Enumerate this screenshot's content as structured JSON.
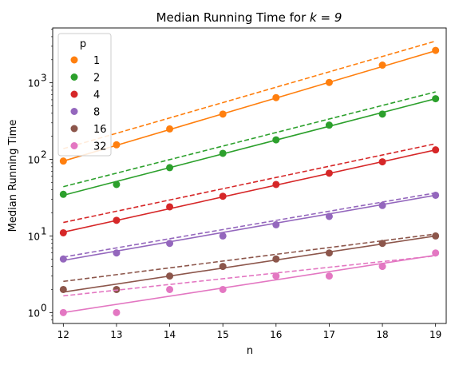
{
  "chart_data": {
    "type": "scatter",
    "title_prefix": "Median Running Time for ",
    "title_math": "k = 9",
    "xlabel": "n",
    "ylabel": "Median Running Time",
    "xscale": "linear",
    "yscale": "log",
    "xlim": [
      11.8,
      19.2
    ],
    "ylim": [
      0.72,
      5200
    ],
    "xticks": [
      12,
      13,
      14,
      15,
      16,
      17,
      18,
      19
    ],
    "yticks": [
      {
        "value": 1,
        "label": "10",
        "exp": "0"
      },
      {
        "value": 10,
        "label": "10",
        "exp": "1"
      },
      {
        "value": 100,
        "label": "10",
        "exp": "2"
      },
      {
        "value": 1000,
        "label": "10",
        "exp": "3"
      }
    ],
    "legend": {
      "title": "p",
      "placement": "top-left"
    },
    "x": [
      12,
      13,
      14,
      15,
      16,
      17,
      18,
      19
    ],
    "series": [
      {
        "name": "1",
        "color": "#ff7f0e",
        "points": [
          95,
          155,
          250,
          390,
          640,
          1010,
          1700,
          2650
        ],
        "fit": [
          95,
          2620
        ],
        "dashed": [
          138,
          3500
        ]
      },
      {
        "name": "2",
        "color": "#2ca02c",
        "points": [
          35,
          47,
          78,
          120,
          180,
          280,
          390,
          620
        ],
        "fit": [
          34,
          620
        ],
        "dashed": [
          44,
          760
        ]
      },
      {
        "name": "4",
        "color": "#d62728",
        "points": [
          11,
          16,
          24,
          33,
          47,
          66,
          93,
          133
        ],
        "fit": [
          11.2,
          133
        ],
        "dashed": [
          15,
          160
        ]
      },
      {
        "name": "8",
        "color": "#9467bd",
        "points": [
          5,
          6,
          8,
          10,
          14,
          18,
          25,
          34
        ],
        "fit": [
          4.8,
          34
        ],
        "dashed": [
          5.3,
          36.5
        ]
      },
      {
        "name": "16",
        "color": "#8c564b",
        "points": [
          2,
          2,
          3,
          4,
          5,
          6,
          8,
          10
        ],
        "fit": [
          1.85,
          10
        ],
        "dashed": [
          2.55,
          10.6
        ]
      },
      {
        "name": "32",
        "color": "#e377c2",
        "points": [
          1,
          1,
          2,
          2,
          3,
          3,
          4,
          6
        ],
        "fit": [
          1.0,
          5.6
        ],
        "dashed": [
          1.65,
          5.5
        ]
      }
    ]
  }
}
